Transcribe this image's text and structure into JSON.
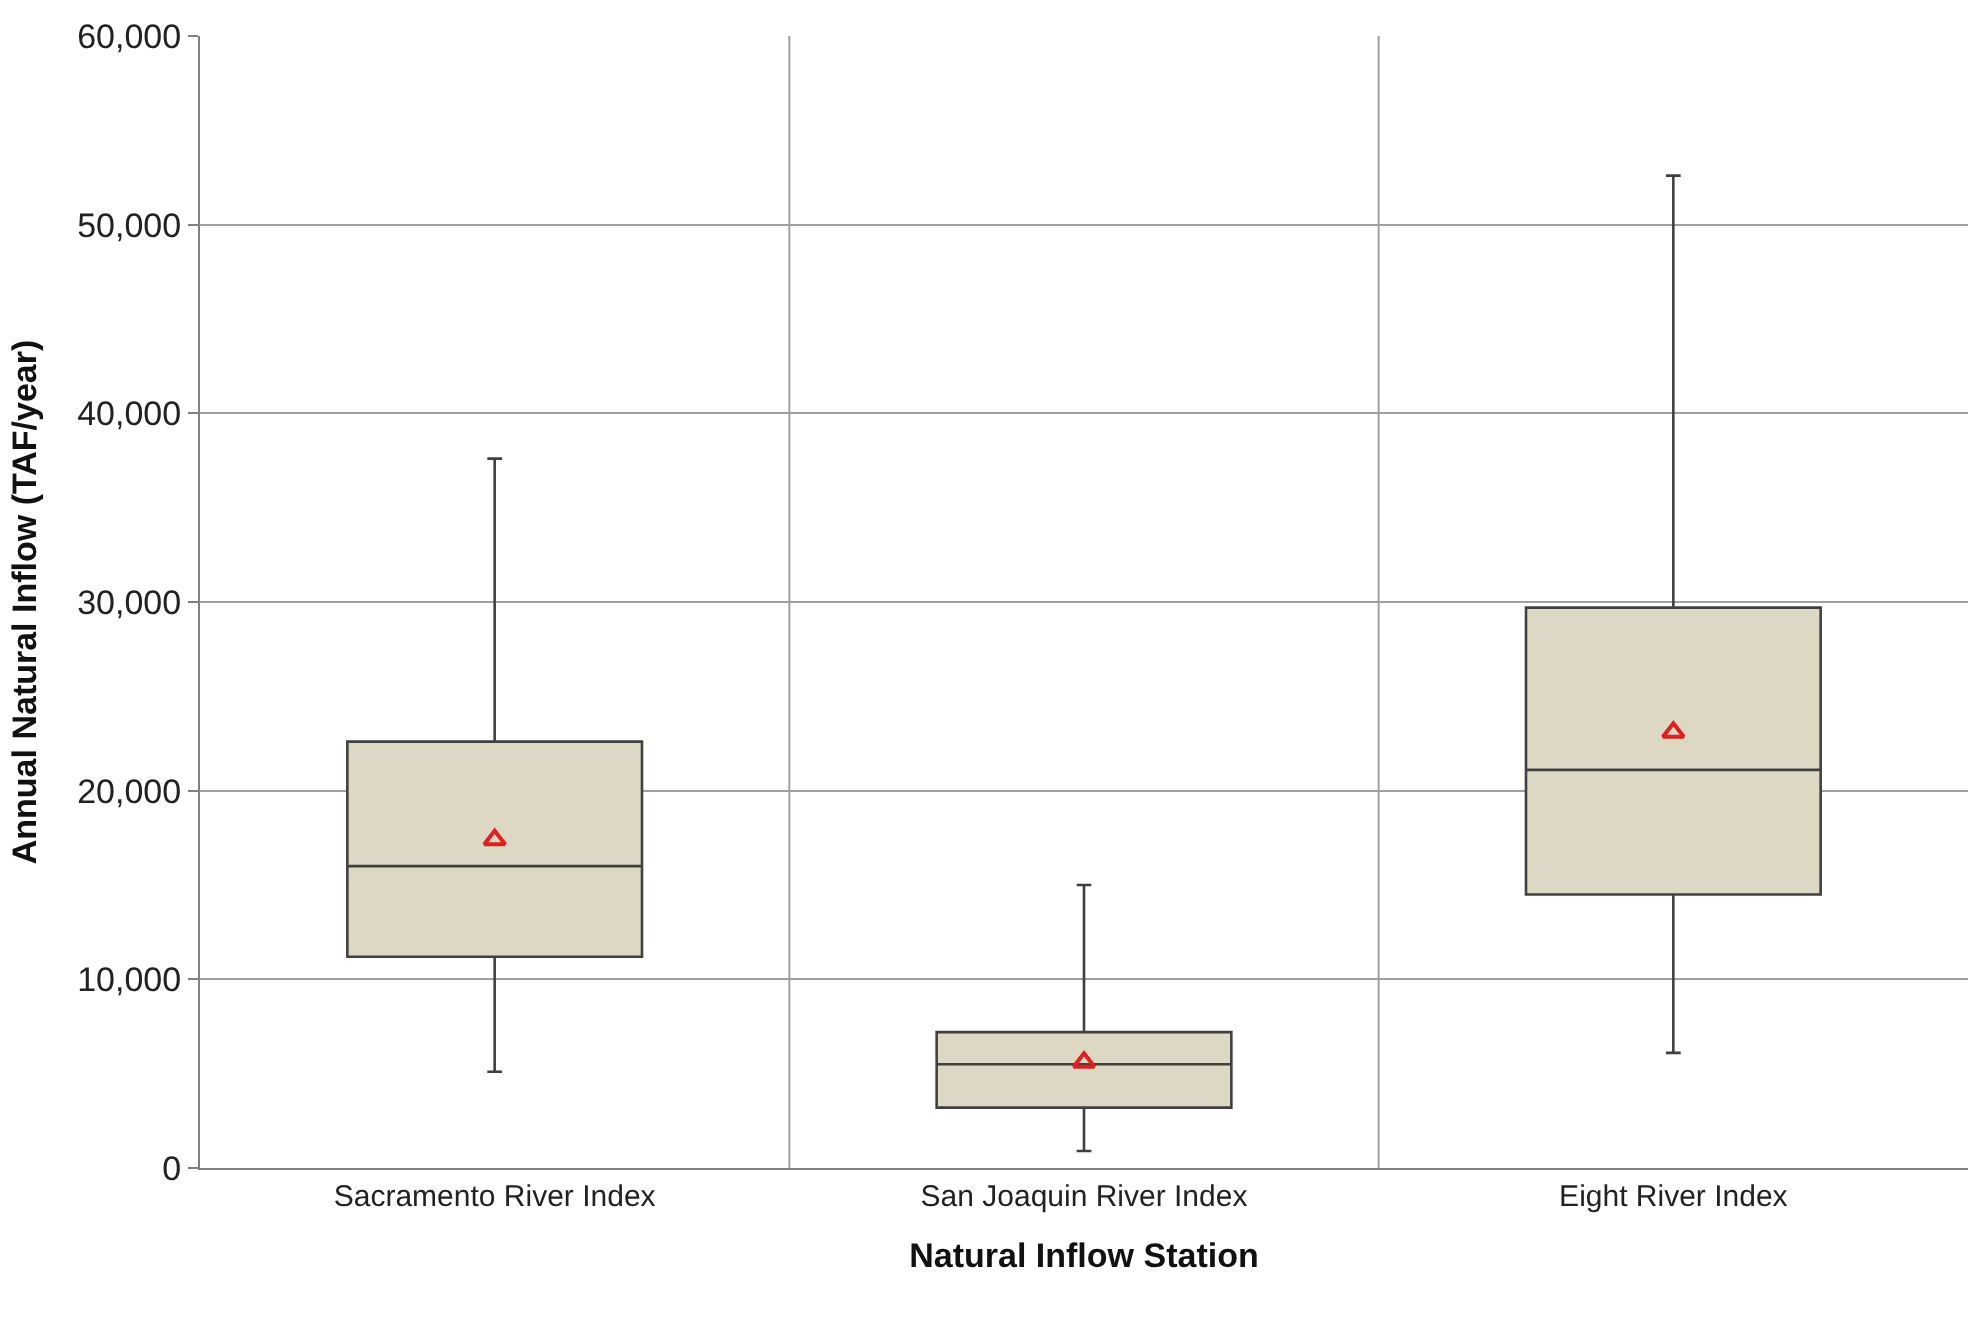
{
  "chart_data": {
    "type": "box",
    "xlabel": "Natural Inflow Station",
    "ylabel": "Annual Natural Inflow (TAF/year)",
    "categories": [
      "Sacramento River Index",
      "San Joaquin River Index",
      "Eight River Index"
    ],
    "boxes": [
      {
        "low": 5100,
        "q1": 11200,
        "median": 16000,
        "q3": 22600,
        "high": 37600,
        "mean": 17400
      },
      {
        "low": 900,
        "q1": 3200,
        "median": 5500,
        "q3": 7200,
        "high": 15000,
        "mean": 5600
      },
      {
        "low": 6100,
        "q1": 14500,
        "median": 21100,
        "q3": 29700,
        "high": 52600,
        "mean": 23100
      }
    ],
    "color": "#ddd8c4",
    "ylim": [
      0,
      60000
    ],
    "yticks": [
      {
        "value": 0,
        "label": "0"
      },
      {
        "value": 10000,
        "label": "10,000"
      },
      {
        "value": 20000,
        "label": "20,000"
      },
      {
        "value": 30000,
        "label": "30,000"
      },
      {
        "value": 40000,
        "label": "40,000"
      },
      {
        "value": 50000,
        "label": "50,000"
      },
      {
        "value": 60000,
        "label": "60,000"
      }
    ],
    "grid": true
  }
}
